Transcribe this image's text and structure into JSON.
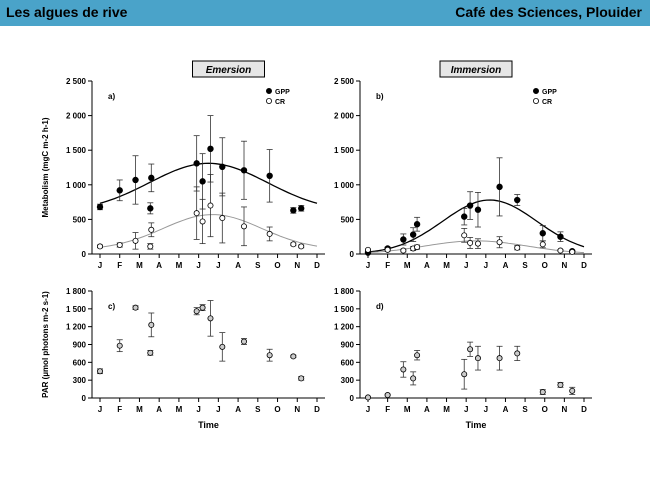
{
  "header": {
    "left_title": "Les algues de rive",
    "right_title": "Café des Sciences, Plouider"
  },
  "colors": {
    "banner": "#4aa3c9",
    "gpp_marker": "#000000",
    "cr_marker": "#ffffff",
    "cr_line": "#999999",
    "par_marker": "#cccccc"
  },
  "months": [
    "J",
    "F",
    "M",
    "A",
    "M",
    "J",
    "J",
    "A",
    "S",
    "O",
    "N",
    "D"
  ],
  "xlabel": "Time",
  "chart_data": [
    {
      "id": "a",
      "type": "scatter",
      "panel_label": "a)",
      "title": "Emersion",
      "ylabel": "Metabolism (mgC m-2 h-1)",
      "ylim": [
        0,
        2500
      ],
      "yticks": [
        "0",
        "500",
        "1 000",
        "1 500",
        "2 000",
        "2 500"
      ],
      "legend": [
        "GPP",
        "CR"
      ],
      "legend_position": "top-right",
      "series": [
        {
          "name": "GPP",
          "fit_curve": "bell",
          "points": [
            {
              "x": 1.0,
              "y": 680,
              "e": 40
            },
            {
              "x": 2.0,
              "y": 920,
              "e": 150
            },
            {
              "x": 2.8,
              "y": 1070,
              "e": 350
            },
            {
              "x": 3.55,
              "y": 660,
              "e": 80
            },
            {
              "x": 3.6,
              "y": 1100,
              "e": 200
            },
            {
              "x": 5.9,
              "y": 1310,
              "e": 400
            },
            {
              "x": 6.2,
              "y": 1050,
              "e": 400
            },
            {
              "x": 6.6,
              "y": 1520,
              "e": 480
            },
            {
              "x": 7.2,
              "y": 1260,
              "e": 420
            },
            {
              "x": 8.3,
              "y": 1210,
              "e": 420
            },
            {
              "x": 9.6,
              "y": 1130,
              "e": 380
            },
            {
              "x": 10.8,
              "y": 630,
              "e": 40
            },
            {
              "x": 11.2,
              "y": 660,
              "e": 40
            }
          ]
        },
        {
          "name": "CR",
          "fit_curve": "bell",
          "points": [
            {
              "x": 1.0,
              "y": 110,
              "e": 20
            },
            {
              "x": 2.0,
              "y": 130,
              "e": 30
            },
            {
              "x": 2.8,
              "y": 190,
              "e": 120
            },
            {
              "x": 3.55,
              "y": 110,
              "e": 40
            },
            {
              "x": 3.6,
              "y": 350,
              "e": 100
            },
            {
              "x": 5.9,
              "y": 590,
              "e": 380
            },
            {
              "x": 6.2,
              "y": 470,
              "e": 320
            },
            {
              "x": 6.6,
              "y": 700,
              "e": 450
            },
            {
              "x": 7.2,
              "y": 520,
              "e": 360
            },
            {
              "x": 8.3,
              "y": 400,
              "e": 280
            },
            {
              "x": 9.6,
              "y": 290,
              "e": 100
            },
            {
              "x": 10.8,
              "y": 140,
              "e": 20
            },
            {
              "x": 11.2,
              "y": 110,
              "e": 20
            }
          ]
        }
      ],
      "fit_params": {
        "GPP": {
          "base": 600,
          "peak": 1310,
          "center": 6.5,
          "width": 3.0
        },
        "CR": {
          "base": 60,
          "peak": 570,
          "center": 6.7,
          "width": 2.5
        }
      }
    },
    {
      "id": "b",
      "type": "scatter",
      "panel_label": "b)",
      "title": "Immersion",
      "ylabel": "",
      "ylim": [
        0,
        2500
      ],
      "yticks": [
        "0",
        "500",
        "1 000",
        "1 500",
        "2 000",
        "2 500"
      ],
      "legend": [
        "GPP",
        "CR"
      ],
      "legend_position": "top-right",
      "series": [
        {
          "name": "GPP",
          "fit_curve": "bell",
          "points": [
            {
              "x": 1.0,
              "y": 20,
              "e": 10
            },
            {
              "x": 2.0,
              "y": 80,
              "e": 20
            },
            {
              "x": 2.8,
              "y": 210,
              "e": 80
            },
            {
              "x": 3.3,
              "y": 280,
              "e": 100
            },
            {
              "x": 3.5,
              "y": 430,
              "e": 100
            },
            {
              "x": 5.9,
              "y": 540,
              "e": 120
            },
            {
              "x": 6.2,
              "y": 700,
              "e": 200
            },
            {
              "x": 6.6,
              "y": 640,
              "e": 250
            },
            {
              "x": 7.7,
              "y": 970,
              "e": 420
            },
            {
              "x": 8.6,
              "y": 780,
              "e": 80
            },
            {
              "x": 9.9,
              "y": 300,
              "e": 110
            },
            {
              "x": 10.8,
              "y": 250,
              "e": 70
            },
            {
              "x": 11.4,
              "y": 40,
              "e": 15
            }
          ]
        },
        {
          "name": "CR",
          "fit_curve": "bell",
          "points": [
            {
              "x": 1.0,
              "y": 60,
              "e": 10
            },
            {
              "x": 2.0,
              "y": 60,
              "e": 20
            },
            {
              "x": 2.8,
              "y": 50,
              "e": 20
            },
            {
              "x": 3.3,
              "y": 80,
              "e": 30
            },
            {
              "x": 3.5,
              "y": 100,
              "e": 30
            },
            {
              "x": 5.9,
              "y": 270,
              "e": 100
            },
            {
              "x": 6.2,
              "y": 160,
              "e": 80
            },
            {
              "x": 6.6,
              "y": 150,
              "e": 70
            },
            {
              "x": 7.7,
              "y": 170,
              "e": 80
            },
            {
              "x": 8.6,
              "y": 90,
              "e": 30
            },
            {
              "x": 9.9,
              "y": 140,
              "e": 50
            },
            {
              "x": 10.8,
              "y": 50,
              "e": 15
            },
            {
              "x": 11.4,
              "y": 30,
              "e": 10
            }
          ]
        }
      ],
      "fit_params": {
        "GPP": {
          "base": 0,
          "peak": 780,
          "center": 7.2,
          "width": 2.4
        },
        "CR": {
          "base": 0,
          "peak": 190,
          "center": 6.5,
          "width": 2.6
        }
      }
    },
    {
      "id": "c",
      "type": "scatter",
      "panel_label": "c)",
      "title": "",
      "ylabel": "PAR (µmol photons m-2 s-1)",
      "ylim": [
        0,
        1800
      ],
      "yticks": [
        "0",
        "300",
        "600",
        "900",
        "1 200",
        "1 500",
        "1 800"
      ],
      "legend": [],
      "legend_position": "",
      "series": [
        {
          "name": "",
          "fit_curve": "none",
          "points": [
            {
              "x": 1.0,
              "y": 450,
              "e": 40
            },
            {
              "x": 2.0,
              "y": 880,
              "e": 100
            },
            {
              "x": 2.8,
              "y": 1520,
              "e": 30
            },
            {
              "x": 3.55,
              "y": 760,
              "e": 40
            },
            {
              "x": 3.6,
              "y": 1230,
              "e": 200
            },
            {
              "x": 5.9,
              "y": 1460,
              "e": 60
            },
            {
              "x": 6.2,
              "y": 1520,
              "e": 50
            },
            {
              "x": 6.6,
              "y": 1340,
              "e": 300
            },
            {
              "x": 7.2,
              "y": 860,
              "e": 240
            },
            {
              "x": 8.3,
              "y": 950,
              "e": 50
            },
            {
              "x": 9.6,
              "y": 720,
              "e": 100
            },
            {
              "x": 10.8,
              "y": 700,
              "e": 20
            },
            {
              "x": 11.2,
              "y": 330,
              "e": 30
            }
          ]
        }
      ]
    },
    {
      "id": "d",
      "type": "scatter",
      "panel_label": "d)",
      "title": "",
      "ylabel": "",
      "ylim": [
        0,
        1800
      ],
      "yticks": [
        "0",
        "300",
        "600",
        "900",
        "1 200",
        "1 500",
        "1 800"
      ],
      "legend": [],
      "legend_position": "",
      "series": [
        {
          "name": "",
          "fit_curve": "none",
          "points": [
            {
              "x": 1.0,
              "y": 10,
              "e": 5
            },
            {
              "x": 2.0,
              "y": 50,
              "e": 15
            },
            {
              "x": 2.8,
              "y": 480,
              "e": 130
            },
            {
              "x": 3.3,
              "y": 330,
              "e": 110
            },
            {
              "x": 3.5,
              "y": 720,
              "e": 80
            },
            {
              "x": 5.9,
              "y": 400,
              "e": 250
            },
            {
              "x": 6.2,
              "y": 820,
              "e": 120
            },
            {
              "x": 6.6,
              "y": 670,
              "e": 200
            },
            {
              "x": 7.7,
              "y": 670,
              "e": 200
            },
            {
              "x": 8.6,
              "y": 750,
              "e": 120
            },
            {
              "x": 9.9,
              "y": 100,
              "e": 40
            },
            {
              "x": 10.8,
              "y": 220,
              "e": 40
            },
            {
              "x": 11.4,
              "y": 120,
              "e": 60
            }
          ]
        }
      ]
    }
  ]
}
